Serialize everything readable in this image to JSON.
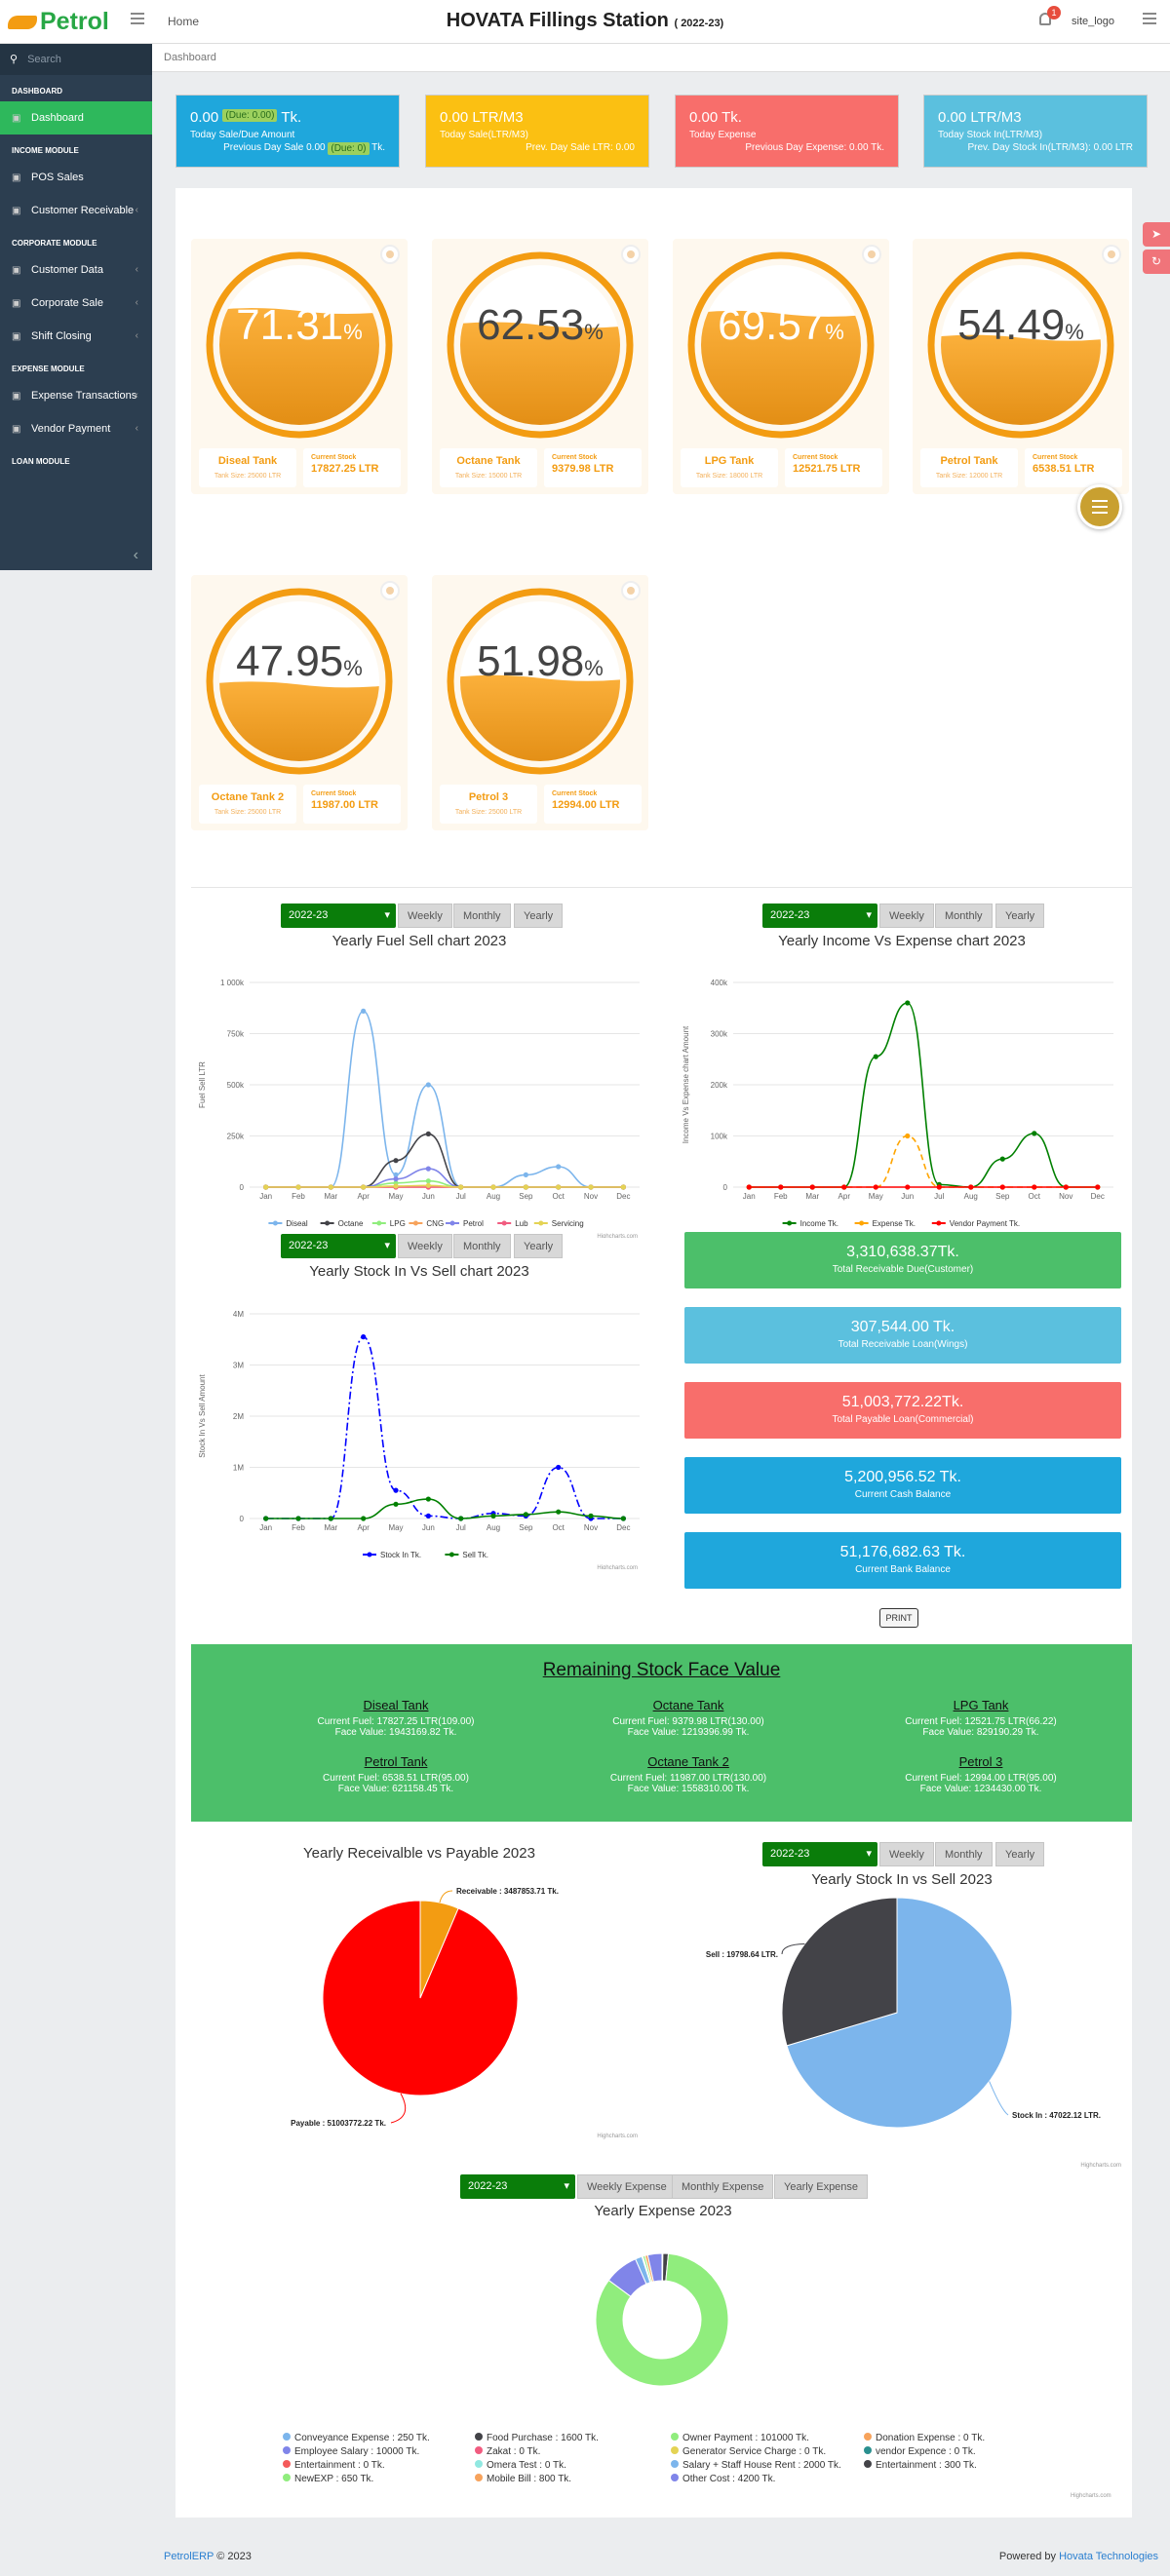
{
  "header": {
    "logo": "Petrol",
    "home": "Home",
    "station": "HOVATA Fillings Station",
    "year": "( 2022-23)",
    "notif_count": "1",
    "user_logo": "site_logo"
  },
  "sidebar": {
    "search_placeholder": "Search",
    "sections": [
      {
        "title": "DASHBOARD",
        "items": [
          {
            "label": "Dashboard",
            "icon": "dashboard-icon",
            "active": true
          }
        ]
      },
      {
        "title": "INCOME MODULE",
        "items": [
          {
            "label": "POS Sales",
            "icon": "pos-icon"
          },
          {
            "label": "Customer Receivable",
            "icon": "receivable-icon",
            "chevron": true
          }
        ]
      },
      {
        "title": "CORPORATE MODULE",
        "items": [
          {
            "label": "Customer Data",
            "icon": "users-icon",
            "chevron": true
          },
          {
            "label": "Corporate Sale",
            "icon": "sale-icon",
            "chevron": true
          },
          {
            "label": "Shift Closing",
            "icon": "shift-icon",
            "chevron": true
          }
        ]
      },
      {
        "title": "EXPENSE MODULE",
        "items": [
          {
            "label": "Expense Transactions",
            "icon": "expense-icon",
            "chevron": true
          },
          {
            "label": "Vendor Payment",
            "icon": "vendor-icon",
            "chevron": true
          }
        ]
      },
      {
        "title": "LOAN MODULE",
        "items": []
      }
    ]
  },
  "breadcrumb": "Dashboard",
  "cards": [
    {
      "value": "0.00",
      "due": "(Due: 0.00)",
      "unit": "Tk.",
      "label": "Today Sale/Due Amount",
      "prev": "Previous Day Sale 0.00",
      "prev_due": "(Due: 0)",
      "prev_unit": "Tk.",
      "color": "#1fa7dc"
    },
    {
      "value": "0.00 LTR/M3",
      "label": "Today Sale(LTR/M3)",
      "prev": "Prev. Day Sale LTR: 0.00",
      "color": "#fbc012"
    },
    {
      "value": "0.00 Tk.",
      "label": "Today Expense",
      "prev": "Previous Day Expense: 0.00 Tk.",
      "color": "#f86e6b"
    },
    {
      "value": "0.00 LTR/M3",
      "label": "Today Stock In(LTR/M3)",
      "prev": "Prev. Day Stock In(LTR/M3): 0.00 LTR",
      "color": "#5bc0de"
    }
  ],
  "tanks": [
    {
      "pct": "71.31",
      "fill": 0.7131,
      "name": "Diseal Tank",
      "size": "Tank Size: 25000 LTR",
      "stock_label": "Current Stock",
      "stock": "17827.25 LTR"
    },
    {
      "pct": "62.53",
      "fill": 0.6253,
      "name": "Octane Tank",
      "size": "Tank Size: 15000 LTR",
      "stock_label": "Current Stock",
      "stock": "9379.98 LTR"
    },
    {
      "pct": "69.57",
      "fill": 0.6957,
      "name": "LPG Tank",
      "size": "Tank Size: 18000 LTR",
      "stock_label": "Current Stock",
      "stock": "12521.75 LTR"
    },
    {
      "pct": "54.49",
      "fill": 0.5449,
      "name": "Petrol Tank",
      "size": "Tank Size: 12000 LTR",
      "stock_label": "Current Stock",
      "stock": "6538.51 LTR"
    },
    {
      "pct": "47.95",
      "fill": 0.4795,
      "name": "Octane Tank 2",
      "size": "Tank Size: 25000 LTR",
      "stock_label": "Current Stock",
      "stock": "11987.00 LTR"
    },
    {
      "pct": "51.98",
      "fill": 0.5198,
      "name": "Petrol 3",
      "size": "Tank Size: 25000 LTR",
      "stock_label": "Current Stock",
      "stock": "12994.00 LTR"
    }
  ],
  "period": {
    "year": "2022-23",
    "weekly": "Weekly",
    "monthly": "Monthly",
    "yearly": "Yearly",
    "weekly_exp": "Weekly Expense",
    "monthly_exp": "Monthly Expense",
    "yearly_exp": "Yearly Expense"
  },
  "credits": "Highcharts.com",
  "stats": [
    {
      "value": "3,310,638.37Tk.",
      "label": "Total Receivable Due(Customer)",
      "color": "#4cbf6a"
    },
    {
      "value": "307,544.00 Tk.",
      "label": "Total Receivable Loan(Wings)",
      "color": "#5bc0de"
    },
    {
      "value": "51,003,772.22Tk.",
      "label": "Total Payable Loan(Commercial)",
      "color": "#f86e6b"
    },
    {
      "value": "5,200,956.52 Tk.",
      "label": "Current Cash Balance",
      "color": "#1fa7dc"
    },
    {
      "value": "51,176,682.63 Tk.",
      "label": "Current Bank Balance",
      "color": "#1fa7dc"
    }
  ],
  "print": "PRINT",
  "remaining": {
    "title": "Remaining Stock Face Value",
    "items": [
      {
        "name": "Diseal Tank",
        "fuel": "Current Fuel: 17827.25 LTR(109.00)",
        "face": "Face Value: 1943169.82 Tk."
      },
      {
        "name": "Octane Tank",
        "fuel": "Current Fuel: 9379.98 LTR(130.00)",
        "face": "Face Value: 1219396.99 Tk."
      },
      {
        "name": "LPG Tank",
        "fuel": "Current Fuel: 12521.75 LTR(66.22)",
        "face": "Face Value: 829190.29 Tk."
      },
      {
        "name": "Petrol Tank",
        "fuel": "Current Fuel: 6538.51 LTR(95.00)",
        "face": "Face Value: 621158.45 Tk."
      },
      {
        "name": "Octane Tank 2",
        "fuel": "Current Fuel: 11987.00 LTR(130.00)",
        "face": "Face Value: 1558310.00 Tk."
      },
      {
        "name": "Petrol 3",
        "fuel": "Current Fuel: 12994.00 LTR(95.00)",
        "face": "Face Value: 1234430.00 Tk."
      }
    ]
  },
  "footer": {
    "brand": "PetrolERP",
    "copy": "© 2023",
    "powered": "Powered by",
    "company": "Hovata Technologies"
  },
  "chart_data": [
    {
      "type": "line",
      "title": "Yearly Fuel Sell chart 2023",
      "ylabel": "Fuel Sell LTR",
      "categories": [
        "Jan",
        "Feb",
        "Mar",
        "Apr",
        "May",
        "Jun",
        "Jul",
        "Aug",
        "Sep",
        "Oct",
        "Nov",
        "Dec"
      ],
      "yticks": [
        "0",
        "250k",
        "500k",
        "750k",
        "1 000k"
      ],
      "ylim": [
        0,
        1000000
      ],
      "series": [
        {
          "name": "Diseal",
          "color": "#7cb5ec",
          "values": [
            0,
            0,
            0,
            860000,
            60000,
            500000,
            0,
            0,
            60000,
            100000,
            0,
            0
          ]
        },
        {
          "name": "Octane",
          "color": "#434348",
          "values": [
            0,
            0,
            0,
            0,
            130000,
            260000,
            0,
            0,
            0,
            0,
            0,
            0
          ]
        },
        {
          "name": "LPG",
          "color": "#90ed7d",
          "values": [
            0,
            0,
            0,
            0,
            20000,
            30000,
            0,
            0,
            0,
            0,
            0,
            0
          ]
        },
        {
          "name": "CNG",
          "color": "#f7a35c",
          "values": [
            0,
            0,
            0,
            0,
            0,
            0,
            0,
            0,
            0,
            0,
            0,
            0
          ]
        },
        {
          "name": "Petrol",
          "color": "#8085e9",
          "values": [
            0,
            0,
            0,
            0,
            40000,
            90000,
            0,
            0,
            0,
            0,
            0,
            0
          ]
        },
        {
          "name": "Lub",
          "color": "#f15c80",
          "values": [
            0,
            0,
            0,
            0,
            0,
            0,
            0,
            0,
            0,
            0,
            0,
            0
          ]
        },
        {
          "name": "Servicing",
          "color": "#e4d354",
          "values": [
            0,
            0,
            0,
            0,
            5000,
            8000,
            0,
            0,
            0,
            0,
            0,
            0
          ]
        }
      ]
    },
    {
      "type": "line",
      "title": "Yearly Income Vs Expense chart 2023",
      "ylabel": "Income Vs Expense chart Amount",
      "categories": [
        "Jan",
        "Feb",
        "Mar",
        "Apr",
        "May",
        "Jun",
        "Jul",
        "Aug",
        "Sep",
        "Oct",
        "Nov",
        "Dec"
      ],
      "yticks": [
        "0",
        "100k",
        "200k",
        "300k",
        "400k"
      ],
      "ylim": [
        0,
        400000
      ],
      "series": [
        {
          "name": "Income Tk.",
          "color": "#008000",
          "values": [
            0,
            0,
            0,
            0,
            255000,
            360000,
            5000,
            0,
            55000,
            105000,
            0,
            0
          ]
        },
        {
          "name": "Expense Tk.",
          "color": "#ffa500",
          "values": [
            0,
            0,
            0,
            0,
            0,
            100000,
            0,
            0,
            0,
            0,
            0,
            0
          ]
        },
        {
          "name": "Vendor Payment Tk.",
          "color": "#ff0000",
          "values": [
            0,
            0,
            0,
            0,
            0,
            0,
            0,
            0,
            0,
            0,
            0,
            0
          ]
        }
      ]
    },
    {
      "type": "line",
      "title": "Yearly Stock In Vs Sell chart 2023",
      "ylabel": "Stock In Vs Sell Amount",
      "categories": [
        "Jan",
        "Feb",
        "Mar",
        "Apr",
        "May",
        "Jun",
        "Jul",
        "Aug",
        "Sep",
        "Oct",
        "Nov",
        "Dec"
      ],
      "yticks": [
        "0",
        "1M",
        "2M",
        "3M",
        "4M"
      ],
      "ylim": [
        0,
        4000000
      ],
      "series": [
        {
          "name": "Stock In Tk.",
          "color": "#0000ff",
          "values": [
            0,
            0,
            0,
            3550000,
            550000,
            50000,
            0,
            100000,
            50000,
            1000000,
            0,
            0
          ]
        },
        {
          "name": "Sell Tk.",
          "color": "#008000",
          "values": [
            0,
            0,
            0,
            0,
            280000,
            380000,
            0,
            50000,
            80000,
            130000,
            50000,
            0
          ]
        }
      ]
    },
    {
      "type": "pie",
      "title": "Yearly Receivalble vs Payable 2023",
      "series": [
        {
          "name": "Receivable : 3487853.71 Tk.",
          "value": 3487853.71,
          "color": "#f39c12"
        },
        {
          "name": "Payable : 51003772.22 Tk.",
          "value": 51003772.22,
          "color": "#ff0000"
        }
      ]
    },
    {
      "type": "pie",
      "title": "Yearly Stock In vs Sell 2023",
      "series": [
        {
          "name": "Stock In : 47022.12 LTR.",
          "value": 47022.12,
          "color": "#7cb5ec"
        },
        {
          "name": "Sell : 19798.64 LTR.",
          "value": 19798.64,
          "color": "#434348"
        }
      ]
    },
    {
      "type": "pie",
      "title": "Yearly Expense 2023",
      "series": [
        {
          "name": "Conveyance Expense : 250 Tk.",
          "value": 250,
          "color": "#7cb5ec"
        },
        {
          "name": "Food Purchase : 1600 Tk.",
          "value": 1600,
          "color": "#434348"
        },
        {
          "name": "Owner Payment : 101000 Tk.",
          "value": 101000,
          "color": "#90ed7d"
        },
        {
          "name": "Donation Expense : 0 Tk.",
          "value": 0,
          "color": "#f7a35c"
        },
        {
          "name": "Employee Salary : 10000 Tk.",
          "value": 10000,
          "color": "#8085e9"
        },
        {
          "name": "Zakat : 0 Tk.",
          "value": 0,
          "color": "#f15c80"
        },
        {
          "name": "Generator Service Charge : 0 Tk.",
          "value": 0,
          "color": "#e4d354"
        },
        {
          "name": "vendor Expence : 0 Tk.",
          "value": 0,
          "color": "#2b908f"
        },
        {
          "name": "Entertainment : 0 Tk.",
          "value": 0,
          "color": "#f45b5b"
        },
        {
          "name": "Omera Test : 0 Tk.",
          "value": 0,
          "color": "#91e8e1"
        },
        {
          "name": "Salary + Staff House Rent : 2000 Tk.",
          "value": 2000,
          "color": "#7cb5ec"
        },
        {
          "name": "Entertainment : 300 Tk.",
          "value": 300,
          "color": "#434348"
        },
        {
          "name": "NewEXP : 650 Tk.",
          "value": 650,
          "color": "#90ed7d"
        },
        {
          "name": "Mobile Bill : 800 Tk.",
          "value": 800,
          "color": "#f7a35c"
        },
        {
          "name": "Other Cost : 4200 Tk.",
          "value": 4200,
          "color": "#8085e9"
        }
      ]
    }
  ]
}
